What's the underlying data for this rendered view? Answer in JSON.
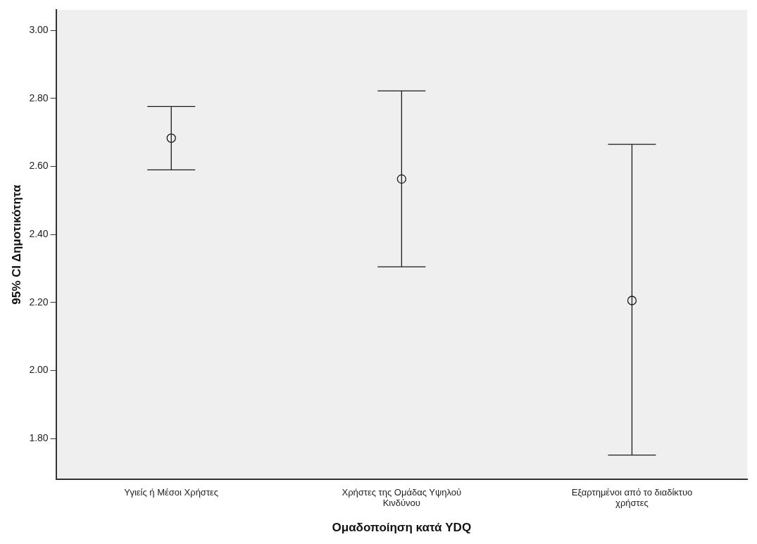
{
  "chart_data": {
    "type": "scatter",
    "xlabel": "Ομαδοποίηση κατά YDQ",
    "ylabel": "95% CI Δημοτικότητα",
    "categories": [
      "Υγιείς ή Μέσοι Χρήστες",
      "Χρήστες της Ομάδας Υψηλού Κινδύνου",
      "Εξαρτημένοι από το διαδίκτυο χρήστες"
    ],
    "series": [
      {
        "color": "#1a1a1a",
        "values": [
          2.683,
          2.563,
          2.206
        ],
        "errors": [
          [
            2.59,
            2.776
          ],
          [
            2.305,
            2.822
          ],
          [
            1.752,
            2.665
          ]
        ]
      }
    ],
    "ylim": [
      1.68,
      3.06
    ],
    "yticks": [
      {
        "value": 1.8,
        "label": "1.80"
      },
      {
        "value": 2.0,
        "label": "2.00"
      },
      {
        "value": 2.2,
        "label": "2.20"
      },
      {
        "value": 2.4,
        "label": "2.40"
      },
      {
        "value": 2.6,
        "label": "2.60"
      },
      {
        "value": 2.8,
        "label": "2.80"
      },
      {
        "value": 3.0,
        "label": "3.00"
      }
    ],
    "marker": "circle",
    "grid": false,
    "legend": false
  }
}
